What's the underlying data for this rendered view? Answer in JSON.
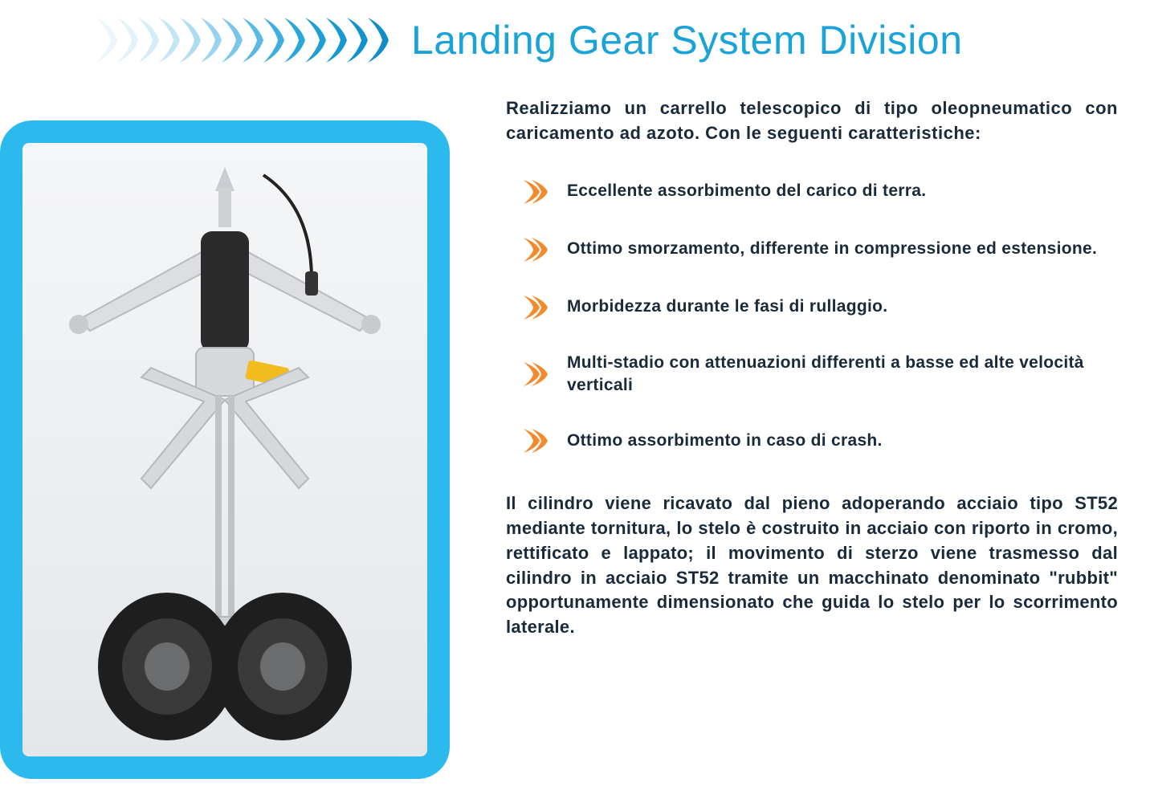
{
  "header": {
    "title": "Landing Gear System Division",
    "title_color": "#19a3d8",
    "title_fontsize": 50,
    "chevrons": {
      "count": 14,
      "colors": [
        "#eaf6fc",
        "#e1f2fa",
        "#d4ecf8",
        "#c3e5f5",
        "#aeddf2",
        "#95d3ee",
        "#78c7e9",
        "#58bae4",
        "#3cafdf",
        "#29a6da",
        "#1d9fd6",
        "#1698d1",
        "#1292cc",
        "#0f8dc8"
      ]
    }
  },
  "intro_text": "Realizziamo un carrello telescopico di tipo oleopneumatico con caricamento ad azoto. Con le seguenti caratteristiche:",
  "features": [
    "Eccellente assorbimento del carico  di terra.",
    "Ottimo smorzamento, differente in compressione ed  estensione.",
    "Morbidezza durante le fasi di rullaggio.",
    "Multi-stadio con attenuazioni differenti a basse ed alte velocità verticali",
    "Ottimo assorbimento in caso di crash."
  ],
  "bullet_color": "#f28b2e",
  "closing_text": "Il cilindro viene ricavato dal pieno adoperando acciaio tipo ST52 mediante tornitura, lo stelo è costruito in acciaio con riporto in cromo, rettificato e lappato;  il movimento di sterzo viene trasmesso dal cilindro in acciaio ST52 tramite un macchinato denominato \"rubbit\" opportunamente dimensionato che guida lo stelo per lo scorrimento laterale.",
  "text_color": "#1a2a3a",
  "body_font_size": 22,
  "image_card": {
    "frame_color": "#2cbaee",
    "inner_bg_top": "#f5f6f8",
    "inner_bg_bottom": "#e4e7ea",
    "gear_color": "#d8dadc",
    "accent_color": "#f2bc1f",
    "tire_color": "#2a2a2a",
    "rod_color": "#b8bcc0"
  }
}
